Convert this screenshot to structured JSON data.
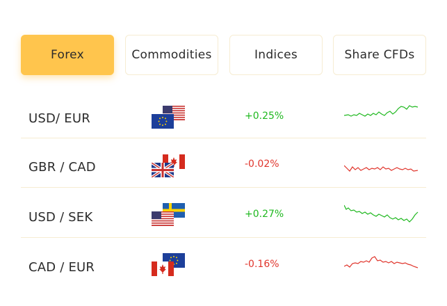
{
  "tabs": [
    {
      "label": "Forex",
      "active": true
    },
    {
      "label": "Commodities",
      "active": false
    },
    {
      "label": "Indices",
      "active": false
    },
    {
      "label": "Share CFDs",
      "active": false
    }
  ],
  "rows": [
    {
      "pair": "USD/ EUR",
      "change": "+0.25%",
      "direction": "up",
      "flags": [
        "us-flag-icon",
        "eu-flag-icon"
      ]
    },
    {
      "pair": "GBR / CAD",
      "change": "-0.02%",
      "direction": "down",
      "flags": [
        "canada-flag-icon",
        "uk-flag-icon"
      ]
    },
    {
      "pair": "USD / SEK",
      "change": "+0.27%",
      "direction": "up",
      "flags": [
        "sweden-flag-icon",
        "us-flag-icon"
      ]
    },
    {
      "pair": "CAD / EUR",
      "change": "-0.16%",
      "direction": "down",
      "flags": [
        "eu-flag-icon",
        "canada-flag-icon"
      ]
    }
  ],
  "colors": {
    "accent": "#ffc54d",
    "up": "#1fb81f",
    "down": "#e0342b",
    "divider": "#f6ecd2"
  }
}
